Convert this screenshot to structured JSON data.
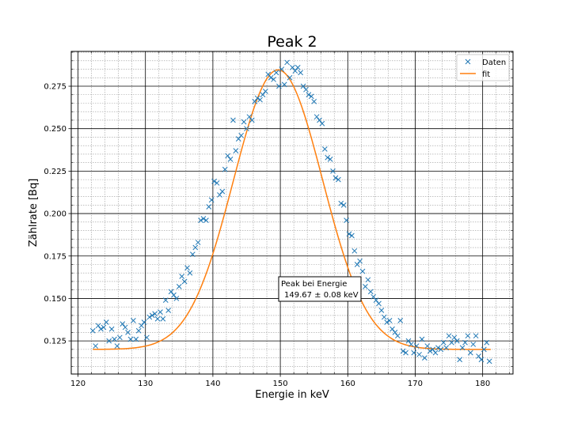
{
  "chart_data": {
    "type": "scatter",
    "title": "Peak 2",
    "xlabel": "Energie in keV",
    "ylabel": "Zählrate [Bq]",
    "xlim": [
      119,
      184.5
    ],
    "ylim": [
      0.1055,
      0.2955
    ],
    "xticks": [
      120,
      130,
      140,
      150,
      160,
      170,
      180
    ],
    "yticks": [
      0.125,
      0.15,
      0.175,
      0.2,
      0.225,
      0.25,
      0.275
    ],
    "xtick_labels": [
      "120",
      "130",
      "140",
      "150",
      "160",
      "170",
      "180"
    ],
    "ytick_labels": [
      "0.125",
      "0.150",
      "0.175",
      "0.200",
      "0.225",
      "0.250",
      "0.275"
    ],
    "grid": true,
    "minor_grid": true,
    "legend_position": "top-right",
    "annotation": {
      "line1": "Peak bei Energie",
      "line2": "149.67 ± 0.08 keV",
      "x": 150.0,
      "y": 0.155
    },
    "fit_params": {
      "amplitude": 0.1646,
      "center": 149.67,
      "sigma": 6.6,
      "offset": 0.12
    },
    "series": [
      {
        "name": "Daten",
        "kind": "scatter",
        "marker": "x",
        "color": "#1f77b4",
        "points": [
          [
            122.2,
            0.131
          ],
          [
            122.6,
            0.122
          ],
          [
            123.0,
            0.134
          ],
          [
            123.4,
            0.132
          ],
          [
            123.8,
            0.133
          ],
          [
            124.2,
            0.136
          ],
          [
            124.6,
            0.125
          ],
          [
            125.0,
            0.132
          ],
          [
            125.4,
            0.126
          ],
          [
            125.8,
            0.122
          ],
          [
            126.2,
            0.127
          ],
          [
            126.6,
            0.135
          ],
          [
            127.0,
            0.133
          ],
          [
            127.4,
            0.13
          ],
          [
            127.8,
            0.126
          ],
          [
            128.2,
            0.137
          ],
          [
            128.6,
            0.126
          ],
          [
            129.0,
            0.131
          ],
          [
            129.4,
            0.134
          ],
          [
            129.8,
            0.136
          ],
          [
            130.2,
            0.127
          ],
          [
            130.6,
            0.139
          ],
          [
            131.0,
            0.14
          ],
          [
            131.4,
            0.141
          ],
          [
            131.8,
            0.138
          ],
          [
            132.2,
            0.142
          ],
          [
            132.6,
            0.138
          ],
          [
            133.0,
            0.149
          ],
          [
            133.4,
            0.143
          ],
          [
            133.8,
            0.154
          ],
          [
            134.2,
            0.152
          ],
          [
            134.6,
            0.15
          ],
          [
            135.0,
            0.157
          ],
          [
            135.4,
            0.163
          ],
          [
            135.8,
            0.16
          ],
          [
            136.2,
            0.168
          ],
          [
            136.6,
            0.165
          ],
          [
            137.0,
            0.176
          ],
          [
            137.4,
            0.18
          ],
          [
            137.8,
            0.183
          ],
          [
            138.2,
            0.196
          ],
          [
            138.6,
            0.197
          ],
          [
            139.0,
            0.196
          ],
          [
            139.4,
            0.204
          ],
          [
            139.8,
            0.208
          ],
          [
            140.2,
            0.219
          ],
          [
            140.6,
            0.218
          ],
          [
            141.0,
            0.211
          ],
          [
            141.4,
            0.213
          ],
          [
            141.8,
            0.226
          ],
          [
            142.2,
            0.234
          ],
          [
            142.6,
            0.232
          ],
          [
            143.0,
            0.255
          ],
          [
            143.4,
            0.237
          ],
          [
            143.8,
            0.244
          ],
          [
            144.2,
            0.246
          ],
          [
            144.6,
            0.254
          ],
          [
            145.0,
            0.25
          ],
          [
            145.4,
            0.257
          ],
          [
            145.8,
            0.255
          ],
          [
            146.2,
            0.266
          ],
          [
            146.6,
            0.268
          ],
          [
            147.0,
            0.267
          ],
          [
            147.4,
            0.27
          ],
          [
            147.8,
            0.272
          ],
          [
            148.2,
            0.282
          ],
          [
            148.6,
            0.28
          ],
          [
            149.0,
            0.279
          ],
          [
            149.4,
            0.283
          ],
          [
            149.8,
            0.275
          ],
          [
            150.2,
            0.285
          ],
          [
            150.6,
            0.276
          ],
          [
            151.0,
            0.289
          ],
          [
            151.4,
            0.28
          ],
          [
            151.8,
            0.286
          ],
          [
            152.2,
            0.284
          ],
          [
            152.6,
            0.286
          ],
          [
            153.0,
            0.283
          ],
          [
            153.4,
            0.275
          ],
          [
            153.8,
            0.273
          ],
          [
            154.2,
            0.27
          ],
          [
            154.6,
            0.269
          ],
          [
            155.0,
            0.266
          ],
          [
            155.4,
            0.257
          ],
          [
            155.8,
            0.255
          ],
          [
            156.2,
            0.253
          ],
          [
            156.6,
            0.238
          ],
          [
            157.0,
            0.233
          ],
          [
            157.4,
            0.232
          ],
          [
            157.8,
            0.225
          ],
          [
            158.2,
            0.221
          ],
          [
            158.6,
            0.22
          ],
          [
            159.0,
            0.206
          ],
          [
            159.4,
            0.205
          ],
          [
            159.8,
            0.196
          ],
          [
            160.2,
            0.188
          ],
          [
            160.6,
            0.187
          ],
          [
            161.0,
            0.178
          ],
          [
            161.4,
            0.17
          ],
          [
            161.8,
            0.172
          ],
          [
            162.2,
            0.166
          ],
          [
            162.6,
            0.157
          ],
          [
            163.0,
            0.161
          ],
          [
            163.4,
            0.154
          ],
          [
            163.8,
            0.151
          ],
          [
            164.2,
            0.149
          ],
          [
            164.6,
            0.147
          ],
          [
            165.0,
            0.143
          ],
          [
            165.4,
            0.139
          ],
          [
            165.8,
            0.136
          ],
          [
            166.2,
            0.137
          ],
          [
            166.6,
            0.132
          ],
          [
            167.0,
            0.13
          ],
          [
            167.4,
            0.128
          ],
          [
            167.8,
            0.137
          ],
          [
            168.2,
            0.119
          ],
          [
            168.6,
            0.118
          ],
          [
            169.0,
            0.125
          ],
          [
            169.4,
            0.123
          ],
          [
            169.8,
            0.118
          ],
          [
            170.2,
            0.122
          ],
          [
            170.6,
            0.117
          ],
          [
            171.0,
            0.126
          ],
          [
            171.4,
            0.115
          ],
          [
            171.8,
            0.122
          ],
          [
            172.2,
            0.119
          ],
          [
            172.6,
            0.12
          ],
          [
            173.0,
            0.118
          ],
          [
            173.4,
            0.121
          ],
          [
            173.8,
            0.12
          ],
          [
            174.2,
            0.124
          ],
          [
            174.6,
            0.121
          ],
          [
            175.0,
            0.128
          ],
          [
            175.4,
            0.124
          ],
          [
            175.8,
            0.127
          ],
          [
            176.2,
            0.125
          ],
          [
            176.6,
            0.114
          ],
          [
            177.0,
            0.121
          ],
          [
            177.4,
            0.124
          ],
          [
            177.8,
            0.128
          ],
          [
            178.2,
            0.118
          ],
          [
            178.6,
            0.123
          ],
          [
            179.0,
            0.128
          ],
          [
            179.4,
            0.116
          ],
          [
            179.8,
            0.114
          ],
          [
            180.2,
            0.12
          ],
          [
            180.6,
            0.124
          ],
          [
            181.0,
            0.113
          ]
        ]
      },
      {
        "name": "fit",
        "kind": "line",
        "color": "#ff7f0e",
        "x_range": [
          122.2,
          181.2
        ]
      }
    ]
  }
}
